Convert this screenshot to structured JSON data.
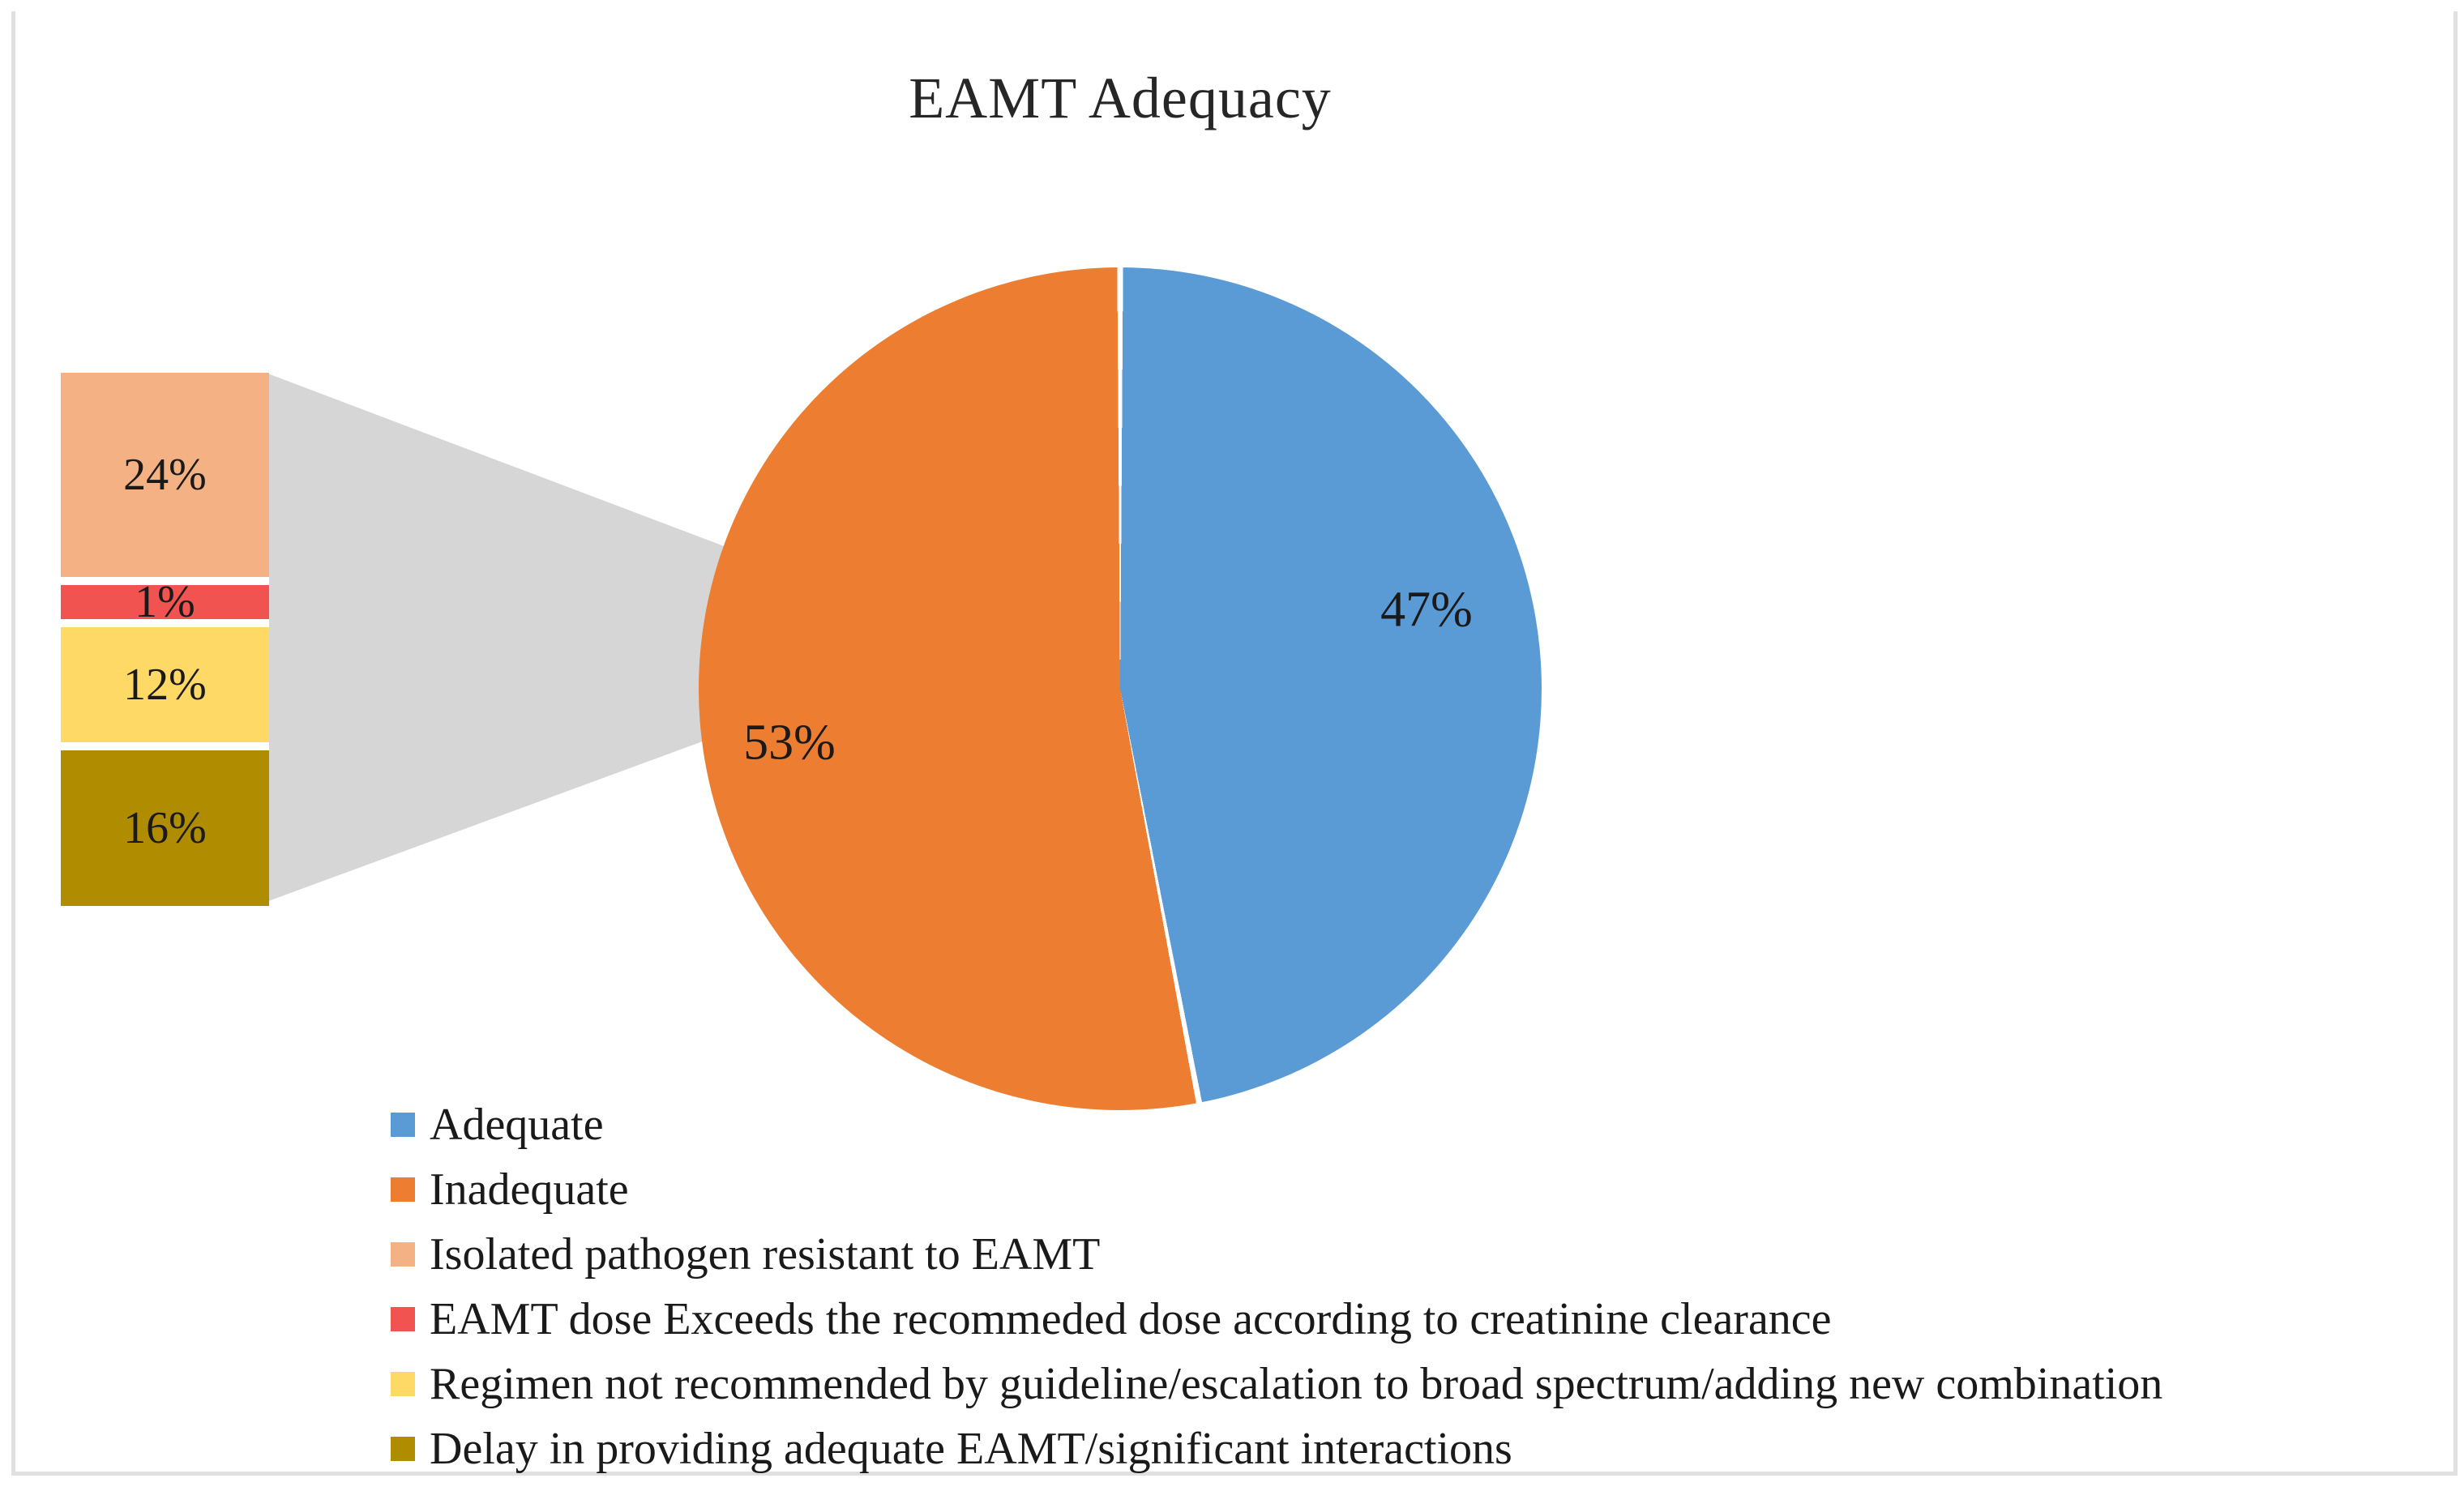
{
  "chart_data": {
    "type": "pie",
    "variant": "bar-of-pie",
    "title": "EAMT Adequacy",
    "legend_position": "bottom-left",
    "slices": [
      {
        "name": "Adequate",
        "value": 47,
        "data_label": "47%",
        "color": "#5B9BD5"
      },
      {
        "name": "Inadequate",
        "value": 53,
        "data_label": "53%",
        "color": "#ED7D31"
      }
    ],
    "bar_segments": [
      {
        "name": "Isolated pathogen resistant to EAMT",
        "value": 24,
        "data_label": "24%",
        "color": "#F4B183"
      },
      {
        "name": "EAMT dose Exceeds the recommeded dose according to creatinine clearance",
        "value": 1,
        "data_label": "1%",
        "color": "#F05350"
      },
      {
        "name": "Regimen not recommended by guideline/escalation to broad spectrum/adding new combination",
        "value": 12,
        "data_label": "12%",
        "color": "#FFD966"
      },
      {
        "name": "Delay in providing adequate EAMT/significant interactions",
        "value": 16,
        "data_label": "16%",
        "color": "#B08C00"
      }
    ],
    "legend": [
      {
        "label": "Adequate",
        "color": "#5B9BD5"
      },
      {
        "label": "Inadequate",
        "color": "#ED7D31"
      },
      {
        "label": "Isolated pathogen resistant to EAMT",
        "color": "#F4B183"
      },
      {
        "label": "EAMT dose Exceeds the recommeded dose according to creatinine clearance",
        "color": "#F05350"
      },
      {
        "label": "Regimen not recommended by guideline/escalation to broad spectrum/adding new combination",
        "color": "#FFD966"
      },
      {
        "label": "Delay in providing adequate EAMT/significant interactions",
        "color": "#B08C00"
      }
    ],
    "connector_color": "#D6D6D6",
    "slice_border_color": "#FFFFFF",
    "frame_border_color": "#E0E0E0"
  }
}
